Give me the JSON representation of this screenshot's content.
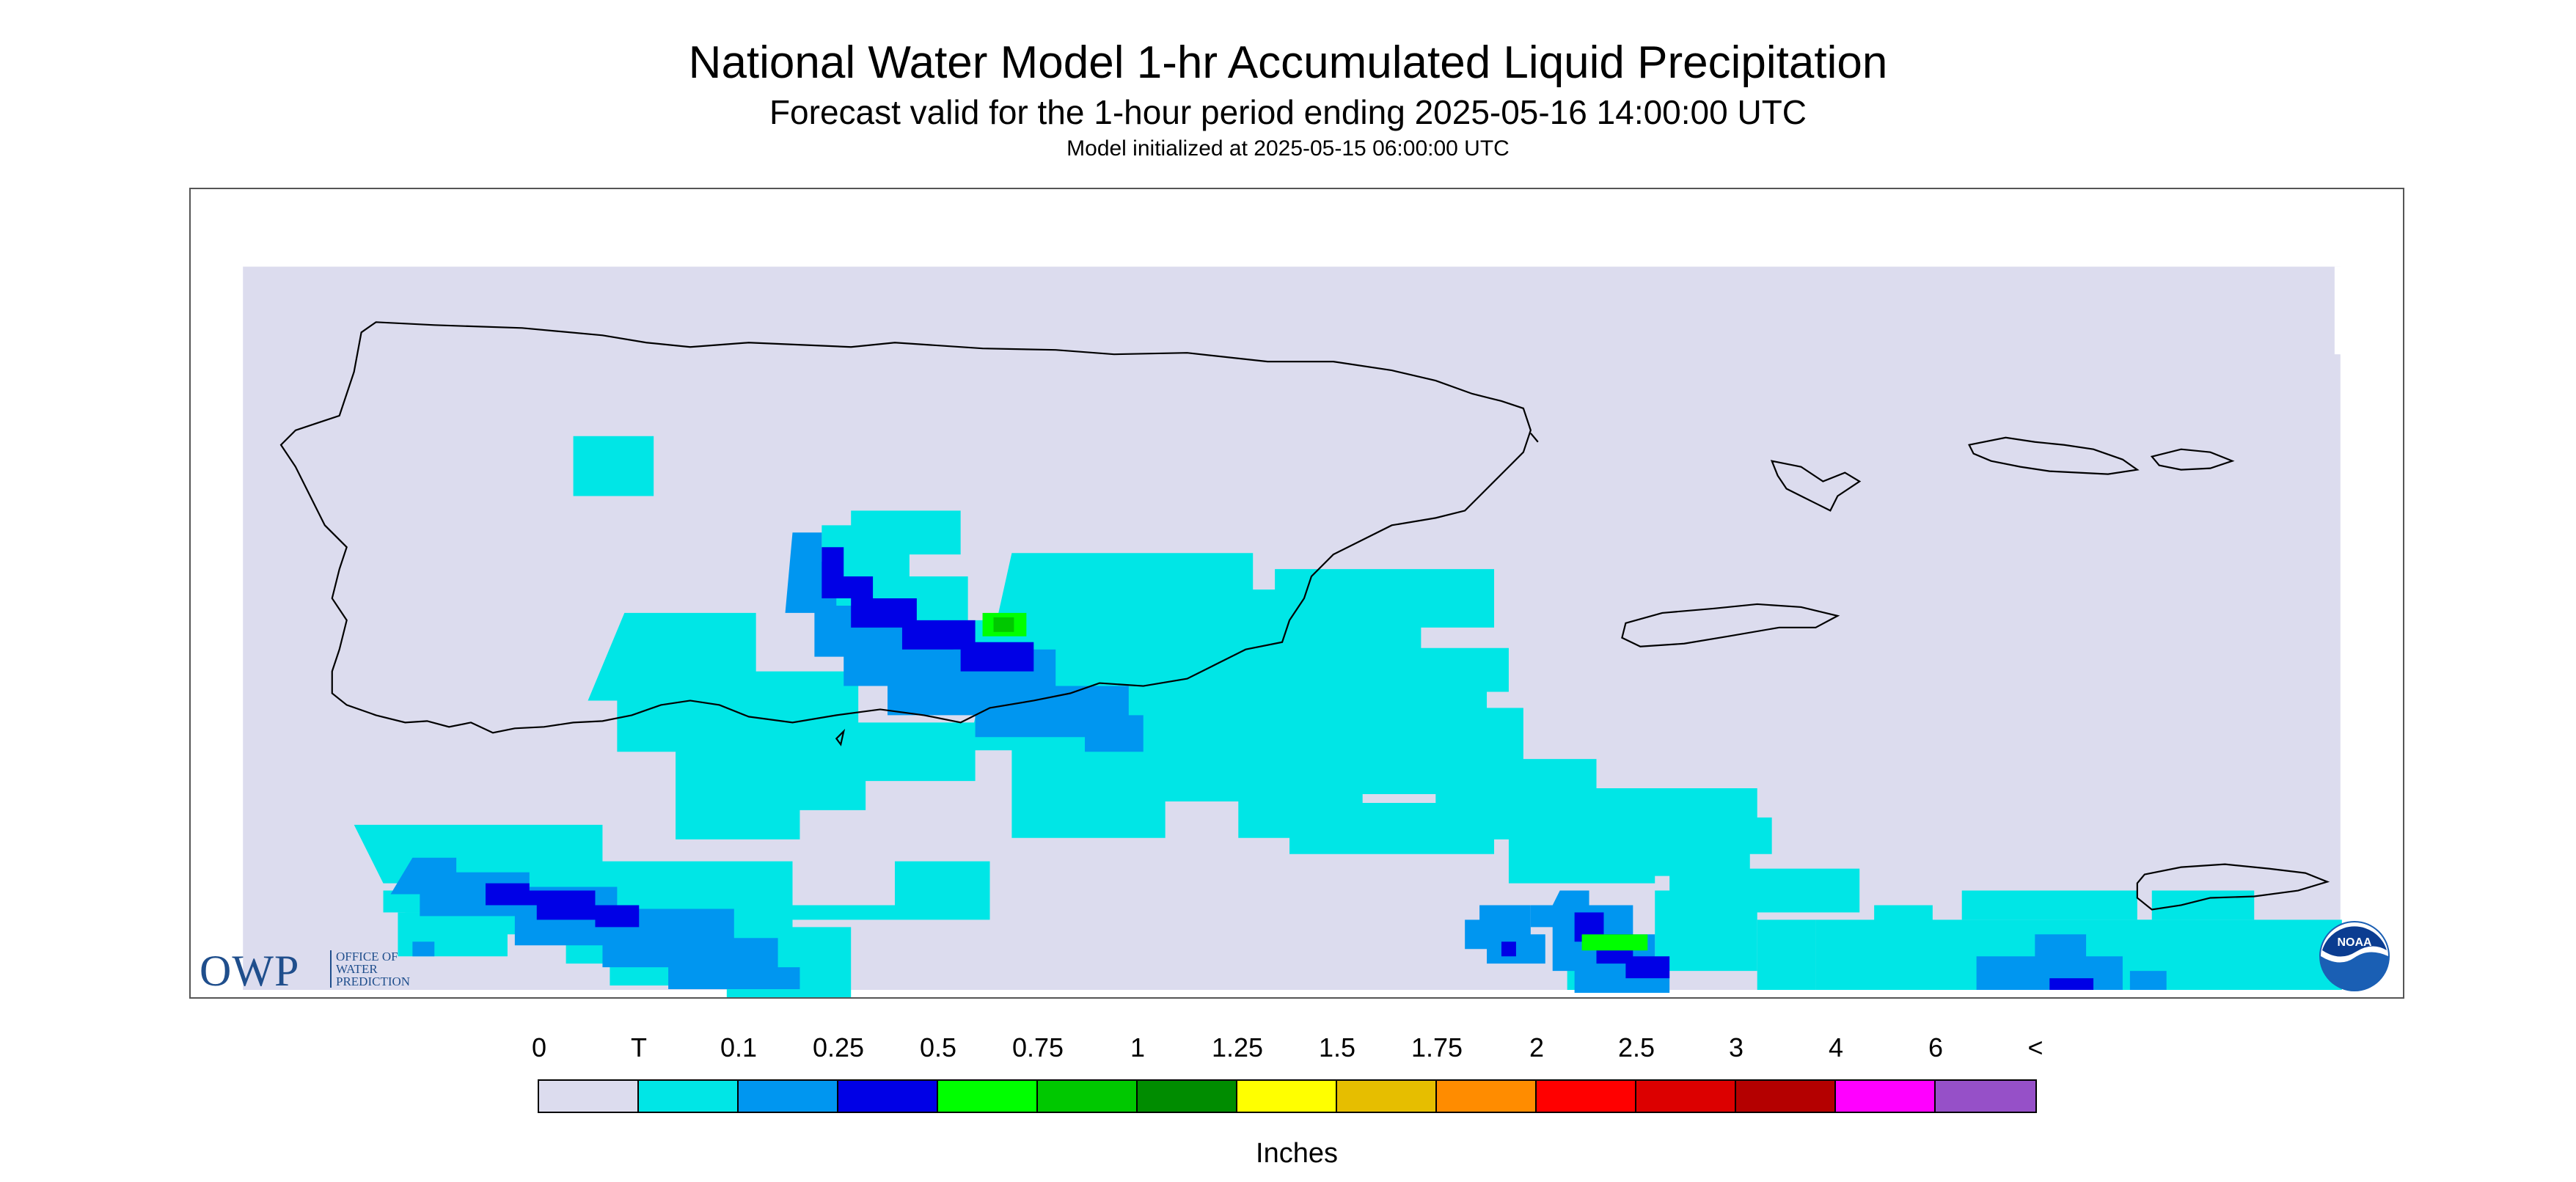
{
  "title": "National Water Model 1-hr Accumulated Liquid Precipitation",
  "subtitle": "Forecast valid for the 1-hour period ending 2025-05-16 14:00:00 UTC",
  "init": "Model initialized at 2025-05-15 06:00:00 UTC",
  "logos": {
    "owp_text": "OWP",
    "owp_office": [
      "OFFICE OF",
      "WATER",
      "PREDICTION"
    ],
    "noaa_text": "NOAA"
  },
  "legend": {
    "labels": [
      "0",
      "T",
      "0.1",
      "0.25",
      "0.5",
      "0.75",
      "1",
      "1.25",
      "1.5",
      "1.75",
      "2",
      "2.5",
      "3",
      "4",
      "6",
      "<"
    ],
    "colors": [
      "#dcdcee",
      "#00e6e6",
      "#0096f0",
      "#0000e6",
      "#00ff00",
      "#00c800",
      "#008c00",
      "#ffff00",
      "#e6be00",
      "#ff8c00",
      "#ff0000",
      "#dc0000",
      "#b40000",
      "#ff00ff",
      "#9650c8"
    ],
    "units": "Inches"
  },
  "map": {
    "region": "Puerto Rico and U.S. Virgin Islands",
    "background_color": "#dcdcee"
  }
}
